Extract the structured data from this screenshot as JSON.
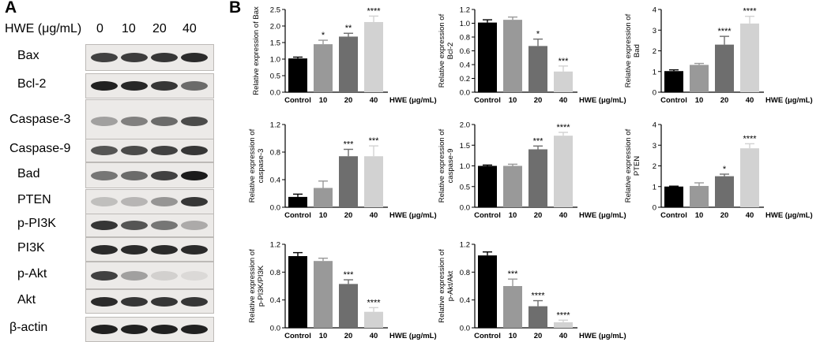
{
  "panel_a": {
    "label": "A",
    "header_title": "HWE (μg/mL)",
    "lanes": [
      "0",
      "10",
      "20",
      "40"
    ],
    "blots": [
      {
        "name": "Bax",
        "intensity": [
          0.8,
          0.82,
          0.85,
          0.9
        ]
      },
      {
        "name": "Bcl-2",
        "intensity": [
          0.95,
          0.92,
          0.85,
          0.6
        ]
      },
      {
        "name": "Caspase-3",
        "intensity": [
          0.35,
          0.5,
          0.6,
          0.75
        ]
      },
      {
        "name": "Caspase-9",
        "intensity": [
          0.7,
          0.75,
          0.8,
          0.85
        ]
      },
      {
        "name": "Bad",
        "intensity": [
          0.55,
          0.6,
          0.8,
          0.98
        ]
      },
      {
        "name": "PTEN",
        "intensity": [
          0.2,
          0.25,
          0.4,
          0.85
        ]
      },
      {
        "name": "p-PI3K",
        "intensity": [
          0.85,
          0.7,
          0.55,
          0.3
        ]
      },
      {
        "name": "PI3K",
        "intensity": [
          0.9,
          0.9,
          0.9,
          0.9
        ]
      },
      {
        "name": "p-Akt",
        "intensity": [
          0.8,
          0.35,
          0.12,
          0.08
        ]
      },
      {
        "name": "Akt",
        "intensity": [
          0.9,
          0.85,
          0.85,
          0.85
        ]
      },
      {
        "name": "β-actin",
        "intensity": [
          0.95,
          0.95,
          0.95,
          0.95
        ]
      }
    ]
  },
  "panel_b": {
    "label": "B"
  },
  "colors": {
    "control": "#000000",
    "dose10": "#999999",
    "dose20": "#6e6e6e",
    "dose40": "#d2d2d2"
  },
  "chart_data": [
    {
      "type": "bar",
      "id": "bax",
      "ylabel": [
        "Relative expression of Bax"
      ],
      "categories": [
        "Control",
        "10",
        "20",
        "40"
      ],
      "xunit": "HWE (μg/mL)",
      "values": [
        1.02,
        1.45,
        1.68,
        2.12
      ],
      "errors": [
        0.04,
        0.12,
        0.1,
        0.18
      ],
      "significance": [
        "",
        "*",
        "**",
        "****"
      ],
      "ylim": [
        0,
        2.5
      ],
      "yticks": [
        "0.0",
        "0.5",
        "1.0",
        "1.5",
        "2.0",
        "2.5"
      ]
    },
    {
      "type": "bar",
      "id": "bcl2",
      "ylabel": [
        "Relative expression of",
        "Bcl-2"
      ],
      "categories": [
        "Control",
        "10",
        "20",
        "40"
      ],
      "xunit": "HWE (μg/mL)",
      "values": [
        1.01,
        1.05,
        0.67,
        0.3
      ],
      "errors": [
        0.04,
        0.04,
        0.1,
        0.08
      ],
      "significance": [
        "",
        "",
        "*",
        "***"
      ],
      "ylim": [
        0,
        1.2
      ],
      "yticks": [
        "0.0",
        "0.2",
        "0.4",
        "0.6",
        "0.8",
        "1.0",
        "1.2"
      ]
    },
    {
      "type": "bar",
      "id": "bad",
      "ylabel": [
        "Relative expression of",
        "Bad"
      ],
      "categories": [
        "Control",
        "10",
        "20",
        "40"
      ],
      "xunit": "HWE (μg/mL)",
      "values": [
        1.02,
        1.32,
        2.3,
        3.32
      ],
      "errors": [
        0.06,
        0.07,
        0.4,
        0.35
      ],
      "significance": [
        "",
        "",
        "****",
        "****"
      ],
      "ylim": [
        0,
        4
      ],
      "yticks": [
        "0",
        "1",
        "2",
        "3",
        "4"
      ]
    },
    {
      "type": "bar",
      "id": "caspase3",
      "ylabel": [
        "Relative expression of",
        "caspase-3"
      ],
      "categories": [
        "Control",
        "10",
        "20",
        "40"
      ],
      "xunit": "HWE (μg/mL)",
      "values": [
        0.15,
        0.28,
        0.74,
        0.74
      ],
      "errors": [
        0.04,
        0.1,
        0.1,
        0.15
      ],
      "significance": [
        "",
        "",
        "***",
        "***"
      ],
      "ylim": [
        0,
        1.2
      ],
      "yticks": [
        "0.0",
        "0.4",
        "0.8",
        "1.2"
      ]
    },
    {
      "type": "bar",
      "id": "caspase9",
      "ylabel": [
        "Relative expression of",
        "caspase-9"
      ],
      "categories": [
        "Control",
        "10",
        "20",
        "40"
      ],
      "xunit": "HWE (μg/mL)",
      "values": [
        1.0,
        1.0,
        1.4,
        1.73
      ],
      "errors": [
        0.02,
        0.04,
        0.08,
        0.08
      ],
      "significance": [
        "",
        "",
        "***",
        "****"
      ],
      "ylim": [
        0,
        2.0
      ],
      "yticks": [
        "0.0",
        "0.5",
        "1.0",
        "1.5",
        "2.0"
      ]
    },
    {
      "type": "bar",
      "id": "pten",
      "ylabel": [
        "Relative expression of",
        "PTEN"
      ],
      "categories": [
        "Control",
        "10",
        "20",
        "40"
      ],
      "xunit": "HWE (μg/mL)",
      "values": [
        1.0,
        1.03,
        1.5,
        2.85
      ],
      "errors": [
        0.02,
        0.15,
        0.1,
        0.22
      ],
      "significance": [
        "",
        "",
        "*",
        "****"
      ],
      "ylim": [
        0,
        4
      ],
      "yticks": [
        "0",
        "1",
        "2",
        "3",
        "4"
      ]
    },
    {
      "type": "bar",
      "id": "ppi3k",
      "ylabel": [
        "Relative expression of",
        "p-PI3K/PI3K"
      ],
      "categories": [
        "Control",
        "10",
        "20",
        "40"
      ],
      "xunit": "HWE (μg/mL)",
      "values": [
        1.03,
        0.96,
        0.63,
        0.23
      ],
      "errors": [
        0.05,
        0.04,
        0.06,
        0.06
      ],
      "significance": [
        "",
        "",
        "***",
        "****"
      ],
      "ylim": [
        0,
        1.2
      ],
      "yticks": [
        "0.0",
        "0.4",
        "0.8",
        "1.2"
      ]
    },
    {
      "type": "bar",
      "id": "pakt",
      "ylabel": [
        "Relative expression of",
        "p-Akt/Akt"
      ],
      "categories": [
        "Control",
        "10",
        "20",
        "40"
      ],
      "xunit": "HWE (μg/mL)",
      "values": [
        1.04,
        0.6,
        0.31,
        0.08
      ],
      "errors": [
        0.05,
        0.1,
        0.08,
        0.03
      ],
      "significance": [
        "",
        "***",
        "****",
        "****"
      ],
      "ylim": [
        0,
        1.2
      ],
      "yticks": [
        "0.0",
        "0.4",
        "0.8",
        "1.2"
      ]
    }
  ]
}
